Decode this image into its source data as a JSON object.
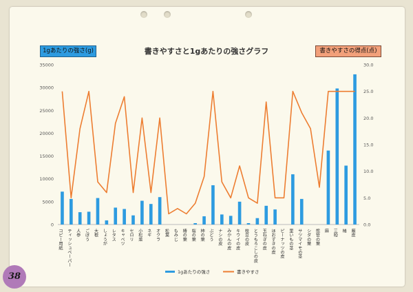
{
  "page_number": "38",
  "chart_data": {
    "type": "bar+line",
    "title": "書きやすさと1gあたりの強さグラフ",
    "left_axis_label": "1gあたりの強さ(g)",
    "right_axis_label": "書きやすさの得点(点)",
    "left_ylim": [
      0,
      35000
    ],
    "left_ticks": [
      "0",
      "5000",
      "10000",
      "15000",
      "20000",
      "25000",
      "30000",
      "35000"
    ],
    "right_ylim": [
      0,
      30
    ],
    "right_ticks": [
      "0.0",
      "5.0",
      "10.0",
      "15.0",
      "20.0",
      "25.0",
      "30.0"
    ],
    "categories": [
      "コピー用紙",
      "ティッシュペーパー",
      "人参",
      "ごぼう",
      "大根",
      "しょうが",
      "レタス",
      "キャベツ",
      "セロリ",
      "小松菜",
      "ネギ",
      "オクラ",
      "松葉",
      "もみじ",
      "椿の葉",
      "桜の葉",
      "柿の葉",
      "ぶどう",
      "ナシの皮",
      "みかんの皮",
      "キウイの皮",
      "枝豆の皮",
      "とうもろこしの皮",
      "玉ねぎの皮",
      "ほおずきの皮",
      "ピーナッツの皮",
      "里いもの茎",
      "サツマイモの茎",
      "シダの葉",
      "熊笹の葉",
      "麻",
      "三椏",
      "楮",
      "雁皮"
    ],
    "series": [
      {
        "name": "1gあたりの強さ",
        "axis": "left",
        "color": "#2d9be0",
        "values": [
          7200,
          5600,
          2700,
          2800,
          5800,
          900,
          3700,
          3400,
          2000,
          5200,
          4500,
          6000,
          0,
          0,
          0,
          300,
          1800,
          8600,
          2200,
          1900,
          5000,
          300,
          1400,
          4100,
          3300,
          0,
          11000,
          5600,
          0,
          0,
          16200,
          29800,
          12900,
          32900
        ]
      },
      {
        "name": "書きやすさ",
        "axis": "right",
        "color": "#ed7d31",
        "values": [
          25,
          5,
          18,
          25,
          8,
          6,
          19,
          24,
          6,
          20,
          6,
          20,
          2,
          3,
          2,
          4,
          9,
          25,
          8,
          5,
          11,
          5,
          4,
          23,
          5,
          5,
          25,
          21,
          18,
          7,
          25,
          25,
          25,
          25
        ]
      }
    ],
    "legend": "bottom-center",
    "grid": false
  }
}
